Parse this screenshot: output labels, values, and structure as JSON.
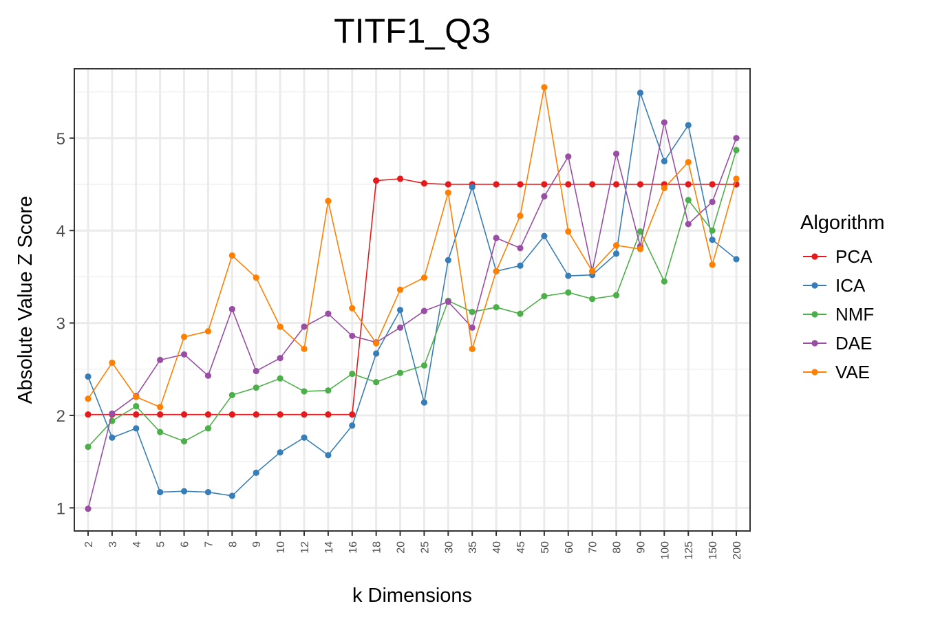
{
  "chart_data": {
    "type": "line",
    "title": "TITF1_Q3",
    "xlabel": "k Dimensions",
    "ylabel": "Absolute Value Z Score",
    "categories": [
      "2",
      "3",
      "4",
      "5",
      "6",
      "7",
      "8",
      "9",
      "10",
      "12",
      "14",
      "16",
      "18",
      "20",
      "25",
      "30",
      "35",
      "40",
      "45",
      "50",
      "60",
      "70",
      "80",
      "90",
      "100",
      "125",
      "150",
      "200"
    ],
    "ylim": [
      0.75,
      5.75
    ],
    "yticks": [
      1,
      2,
      3,
      4,
      5
    ],
    "grid": true,
    "legend": {
      "title": "Algorithm",
      "position": "right"
    },
    "series": [
      {
        "name": "PCA",
        "color": "#e41a1c",
        "values": [
          2.01,
          2.01,
          2.01,
          2.01,
          2.01,
          2.01,
          2.01,
          2.01,
          2.01,
          2.01,
          2.01,
          2.01,
          4.54,
          4.56,
          4.51,
          4.5,
          4.5,
          4.5,
          4.5,
          4.5,
          4.5,
          4.5,
          4.5,
          4.5,
          4.5,
          4.5,
          4.5,
          4.5
        ]
      },
      {
        "name": "ICA",
        "color": "#377eb8",
        "values": [
          2.42,
          1.76,
          1.86,
          1.17,
          1.18,
          1.17,
          1.13,
          1.38,
          1.6,
          1.76,
          1.57,
          1.89,
          2.67,
          3.14,
          2.14,
          3.68,
          4.47,
          3.56,
          3.62,
          3.94,
          3.51,
          3.52,
          3.75,
          5.49,
          4.75,
          5.14,
          3.9,
          3.69
        ]
      },
      {
        "name": "NMF",
        "color": "#4daf4a",
        "values": [
          1.66,
          1.94,
          2.1,
          1.82,
          1.72,
          1.86,
          2.22,
          2.3,
          2.4,
          2.26,
          2.27,
          2.45,
          2.36,
          2.46,
          2.54,
          3.24,
          3.12,
          3.17,
          3.1,
          3.29,
          3.33,
          3.26,
          3.3,
          3.99,
          3.45,
          4.33,
          4.0,
          4.87
        ]
      },
      {
        "name": "DAE",
        "color": "#984ea3",
        "values": [
          0.99,
          2.02,
          2.21,
          2.6,
          2.66,
          2.43,
          3.15,
          2.48,
          2.62,
          2.96,
          3.1,
          2.86,
          2.79,
          2.95,
          3.13,
          3.23,
          2.95,
          3.92,
          3.81,
          4.37,
          4.8,
          3.56,
          4.83,
          3.83,
          5.17,
          4.07,
          4.31,
          5.0
        ]
      },
      {
        "name": "VAE",
        "color": "#ff7f00",
        "values": [
          2.18,
          2.57,
          2.2,
          2.09,
          2.85,
          2.91,
          3.73,
          3.49,
          2.96,
          2.72,
          4.32,
          3.16,
          2.78,
          3.36,
          3.49,
          4.41,
          2.72,
          3.56,
          4.16,
          5.55,
          3.99,
          3.56,
          3.84,
          3.8,
          4.46,
          4.74,
          3.63,
          4.56
        ]
      }
    ]
  }
}
